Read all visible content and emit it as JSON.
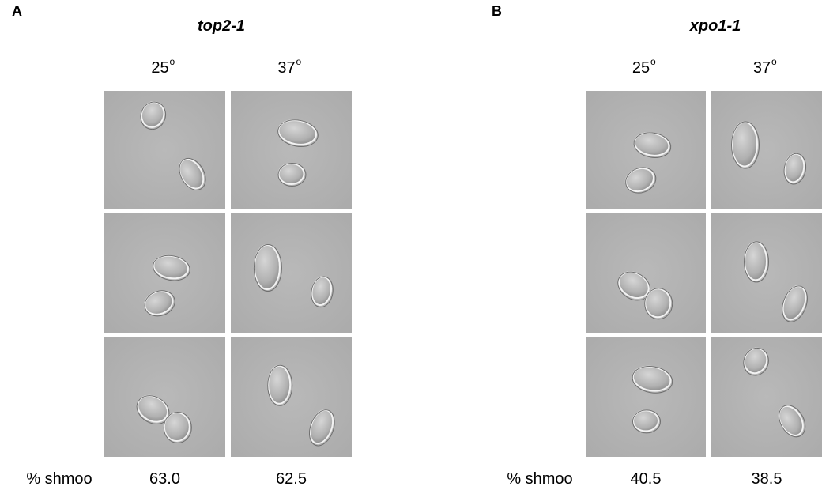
{
  "panels": [
    {
      "letter": "A",
      "title": "top2-1",
      "columns": [
        {
          "label": "25",
          "sup": "o"
        },
        {
          "label": "37",
          "sup": "o"
        }
      ],
      "row_label": "% shmoo",
      "values": [
        "63.0",
        "62.5"
      ]
    },
    {
      "letter": "B",
      "title": "xpo1-1",
      "columns": [
        {
          "label": "25",
          "sup": "o"
        },
        {
          "label": "37",
          "sup": "o"
        }
      ],
      "row_label": "% shmoo",
      "values": [
        "40.5",
        "38.5"
      ]
    }
  ]
}
